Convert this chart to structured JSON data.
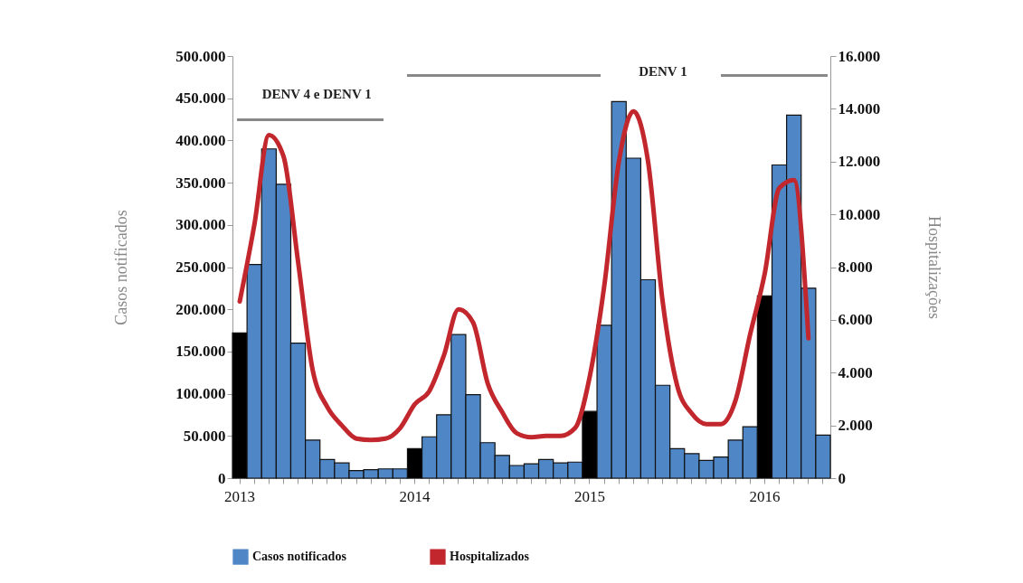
{
  "chart_data": {
    "type": "bar",
    "ylabel": "Casos notificados",
    "y2label": "Hospitalizações",
    "categories": [
      "2013",
      null,
      null,
      null,
      null,
      null,
      null,
      null,
      null,
      null,
      null,
      null,
      "2014",
      null,
      null,
      null,
      null,
      null,
      null,
      null,
      null,
      null,
      null,
      null,
      "2015",
      null,
      null,
      null,
      null,
      null,
      null,
      null,
      null,
      null,
      null,
      null,
      "2016",
      null,
      null,
      null,
      null
    ],
    "series": [
      {
        "name": "Casos notificados",
        "color": "#4f86c6",
        "colors": [
          "#000000",
          "#4f86c6",
          "#4f86c6",
          "#4f86c6",
          "#4f86c6",
          "#4f86c6",
          "#4f86c6",
          "#4f86c6",
          "#4f86c6",
          "#4f86c6",
          "#4f86c6",
          "#4f86c6",
          "#000000",
          "#4f86c6",
          "#4f86c6",
          "#4f86c6",
          "#4f86c6",
          "#4f86c6",
          "#4f86c6",
          "#4f86c6",
          "#4f86c6",
          "#4f86c6",
          "#4f86c6",
          "#4f86c6",
          "#000000",
          "#4f86c6",
          "#4f86c6",
          "#4f86c6",
          "#4f86c6",
          "#4f86c6",
          "#4f86c6",
          "#4f86c6",
          "#4f86c6",
          "#4f86c6",
          "#4f86c6",
          "#4f86c6",
          "#000000",
          "#4f86c6",
          "#4f86c6",
          "#4f86c6",
          "#4f86c6"
        ],
        "values": [
          172000,
          253000,
          390000,
          348000,
          160000,
          45000,
          22000,
          18000,
          9000,
          10000,
          11000,
          11000,
          35000,
          49000,
          75000,
          170000,
          99000,
          42000,
          27000,
          15000,
          17000,
          22000,
          18000,
          19000,
          79000,
          181000,
          446000,
          379000,
          235000,
          110000,
          35000,
          29000,
          21000,
          25000,
          45000,
          61000,
          216000,
          371000,
          430000,
          225000,
          51000
        ]
      },
      {
        "name": "Hospitalizados",
        "type": "line",
        "axis": "y2",
        "color": "#c1272d",
        "values": [
          6700,
          9600,
          13000,
          12200,
          8200,
          4100,
          2700,
          2000,
          1500,
          1450,
          1500,
          1900,
          2800,
          3300,
          4650,
          6400,
          5900,
          3600,
          2500,
          1700,
          1550,
          1600,
          1600,
          1900,
          3850,
          7300,
          12000,
          13900,
          12000,
          6700,
          3500,
          2450,
          2050,
          2050,
          2950,
          5450,
          7750,
          11000,
          11300,
          5300,
          null
        ]
      }
    ],
    "ylim": [
      0,
      500000
    ],
    "yticks": [
      {
        "value": 0,
        "label": "0"
      },
      {
        "value": 50000,
        "label": "50.000"
      },
      {
        "value": 100000,
        "label": "100.000"
      },
      {
        "value": 150000,
        "label": "150.000"
      },
      {
        "value": 200000,
        "label": "200.000"
      },
      {
        "value": 250000,
        "label": "250.000"
      },
      {
        "value": 300000,
        "label": "300.000"
      },
      {
        "value": 350000,
        "label": "350.000"
      },
      {
        "value": 400000,
        "label": "400.000"
      },
      {
        "value": 450000,
        "label": "450.000"
      },
      {
        "value": 500000,
        "label": "500.000"
      }
    ],
    "y2lim": [
      0,
      16000
    ],
    "y2ticks": [
      {
        "value": 0,
        "label": "0"
      },
      {
        "value": 2000,
        "label": "2.000"
      },
      {
        "value": 4000,
        "label": "4.000"
      },
      {
        "value": 6000,
        "label": "6.000"
      },
      {
        "value": 8000,
        "label": "8.000"
      },
      {
        "value": 10000,
        "label": "10.000"
      },
      {
        "value": 12000,
        "label": "12.000"
      },
      {
        "value": 14000,
        "label": "14.000"
      },
      {
        "value": 16000,
        "label": "16.000"
      }
    ],
    "annotations": [
      "DENV 4 e DENV 1",
      "DENV 1"
    ],
    "legend": "bottom",
    "grid": false
  }
}
